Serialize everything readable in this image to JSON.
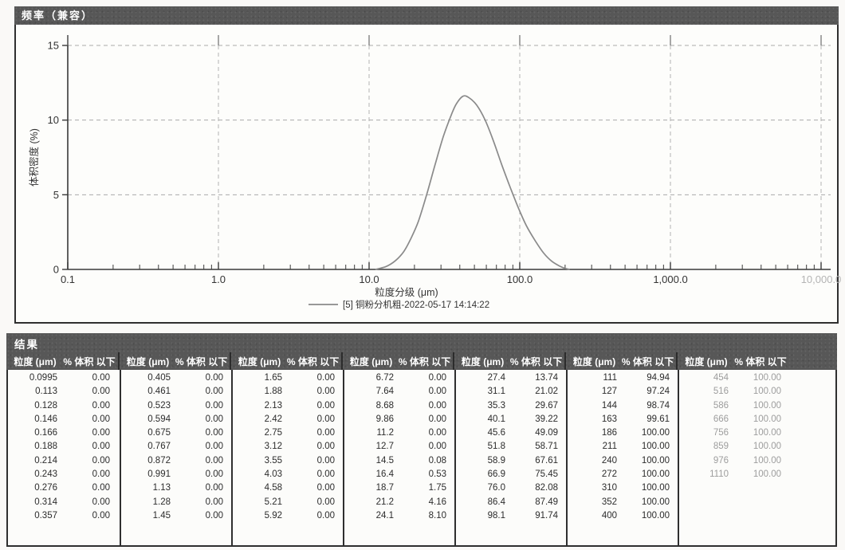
{
  "chart_panel": {
    "title": "频率（兼容）"
  },
  "chart_data": {
    "type": "line",
    "title": "频率（兼容）",
    "xlabel": "粒度分级 (μm)",
    "ylabel": "体积密度 (%)",
    "x_scale": "log",
    "xlim": [
      0.1,
      10000
    ],
    "ylim": [
      0,
      15
    ],
    "grid": true,
    "legend_position": "bottom",
    "y_ticks": [
      0,
      5,
      10,
      15
    ],
    "x_ticks": [
      {
        "label": "0.1",
        "value": 0.1
      },
      {
        "label": "1.0",
        "value": 1
      },
      {
        "label": "10.0",
        "value": 10
      },
      {
        "label": "100.0",
        "value": 100
      },
      {
        "label": "1,000.0",
        "value": 1000
      },
      {
        "label": "10,000.0",
        "value": 10000,
        "faint": true
      }
    ],
    "series": [
      {
        "name": "[5] 铜粉分机粗-2022-05-17 14:14:22",
        "color": "#8a8a8a",
        "peak": {
          "x": 43,
          "y": 11.6
        },
        "points": [
          [
            11,
            0
          ],
          [
            13,
            0.2
          ],
          [
            15,
            0.6
          ],
          [
            17,
            1.2
          ],
          [
            19,
            2.1
          ],
          [
            21.2,
            3.2
          ],
          [
            24.1,
            5.0
          ],
          [
            27.4,
            7.0
          ],
          [
            31.1,
            8.9
          ],
          [
            35.3,
            10.4
          ],
          [
            38,
            11.1
          ],
          [
            42,
            11.6
          ],
          [
            46,
            11.5
          ],
          [
            51.8,
            11.0
          ],
          [
            58.9,
            10.0
          ],
          [
            66.9,
            8.6
          ],
          [
            76,
            7.0
          ],
          [
            86.4,
            5.5
          ],
          [
            98.1,
            4.1
          ],
          [
            111,
            2.9
          ],
          [
            127,
            1.9
          ],
          [
            144,
            1.1
          ],
          [
            163,
            0.55
          ],
          [
            186,
            0.2
          ],
          [
            200,
            0.07
          ],
          [
            215,
            0
          ]
        ]
      }
    ]
  },
  "results_panel": {
    "title": "结果",
    "col_headers": {
      "size": "粒度 (μm)",
      "cum": "% 体积 以下"
    },
    "groups": [
      {
        "faint": false,
        "rows": [
          [
            "0.0995",
            "0.00"
          ],
          [
            "0.113",
            "0.00"
          ],
          [
            "0.128",
            "0.00"
          ],
          [
            "0.146",
            "0.00"
          ],
          [
            "0.166",
            "0.00"
          ],
          [
            "0.188",
            "0.00"
          ],
          [
            "0.214",
            "0.00"
          ],
          [
            "0.243",
            "0.00"
          ],
          [
            "0.276",
            "0.00"
          ],
          [
            "0.314",
            "0.00"
          ],
          [
            "0.357",
            "0.00"
          ]
        ]
      },
      {
        "faint": false,
        "rows": [
          [
            "0.405",
            "0.00"
          ],
          [
            "0.461",
            "0.00"
          ],
          [
            "0.523",
            "0.00"
          ],
          [
            "0.594",
            "0.00"
          ],
          [
            "0.675",
            "0.00"
          ],
          [
            "0.767",
            "0.00"
          ],
          [
            "0.872",
            "0.00"
          ],
          [
            "0.991",
            "0.00"
          ],
          [
            "1.13",
            "0.00"
          ],
          [
            "1.28",
            "0.00"
          ],
          [
            "1.45",
            "0.00"
          ]
        ]
      },
      {
        "faint": false,
        "rows": [
          [
            "1.65",
            "0.00"
          ],
          [
            "1.88",
            "0.00"
          ],
          [
            "2.13",
            "0.00"
          ],
          [
            "2.42",
            "0.00"
          ],
          [
            "2.75",
            "0.00"
          ],
          [
            "3.12",
            "0.00"
          ],
          [
            "3.55",
            "0.00"
          ],
          [
            "4.03",
            "0.00"
          ],
          [
            "4.58",
            "0.00"
          ],
          [
            "5.21",
            "0.00"
          ],
          [
            "5.92",
            "0.00"
          ]
        ]
      },
      {
        "faint": false,
        "rows": [
          [
            "6.72",
            "0.00"
          ],
          [
            "7.64",
            "0.00"
          ],
          [
            "8.68",
            "0.00"
          ],
          [
            "9.86",
            "0.00"
          ],
          [
            "11.2",
            "0.00"
          ],
          [
            "12.7",
            "0.00"
          ],
          [
            "14.5",
            "0.08"
          ],
          [
            "16.4",
            "0.53"
          ],
          [
            "18.7",
            "1.75"
          ],
          [
            "21.2",
            "4.16"
          ],
          [
            "24.1",
            "8.10"
          ]
        ]
      },
      {
        "faint": false,
        "rows": [
          [
            "27.4",
            "13.74"
          ],
          [
            "31.1",
            "21.02"
          ],
          [
            "35.3",
            "29.67"
          ],
          [
            "40.1",
            "39.22"
          ],
          [
            "45.6",
            "49.09"
          ],
          [
            "51.8",
            "58.71"
          ],
          [
            "58.9",
            "67.61"
          ],
          [
            "66.9",
            "75.45"
          ],
          [
            "76.0",
            "82.08"
          ],
          [
            "86.4",
            "87.49"
          ],
          [
            "98.1",
            "91.74"
          ]
        ]
      },
      {
        "faint": false,
        "rows": [
          [
            "111",
            "94.94"
          ],
          [
            "127",
            "97.24"
          ],
          [
            "144",
            "98.74"
          ],
          [
            "163",
            "99.61"
          ],
          [
            "186",
            "100.00"
          ],
          [
            "211",
            "100.00"
          ],
          [
            "240",
            "100.00"
          ],
          [
            "272",
            "100.00"
          ],
          [
            "310",
            "100.00"
          ],
          [
            "352",
            "100.00"
          ],
          [
            "400",
            "100.00"
          ]
        ]
      },
      {
        "faint": true,
        "rows": [
          [
            "454",
            "100.00"
          ],
          [
            "516",
            "100.00"
          ],
          [
            "586",
            "100.00"
          ],
          [
            "666",
            "100.00"
          ],
          [
            "756",
            "100.00"
          ],
          [
            "859",
            "100.00"
          ],
          [
            "976",
            "100.00"
          ],
          [
            "1110",
            "100.00"
          ]
        ]
      }
    ]
  }
}
